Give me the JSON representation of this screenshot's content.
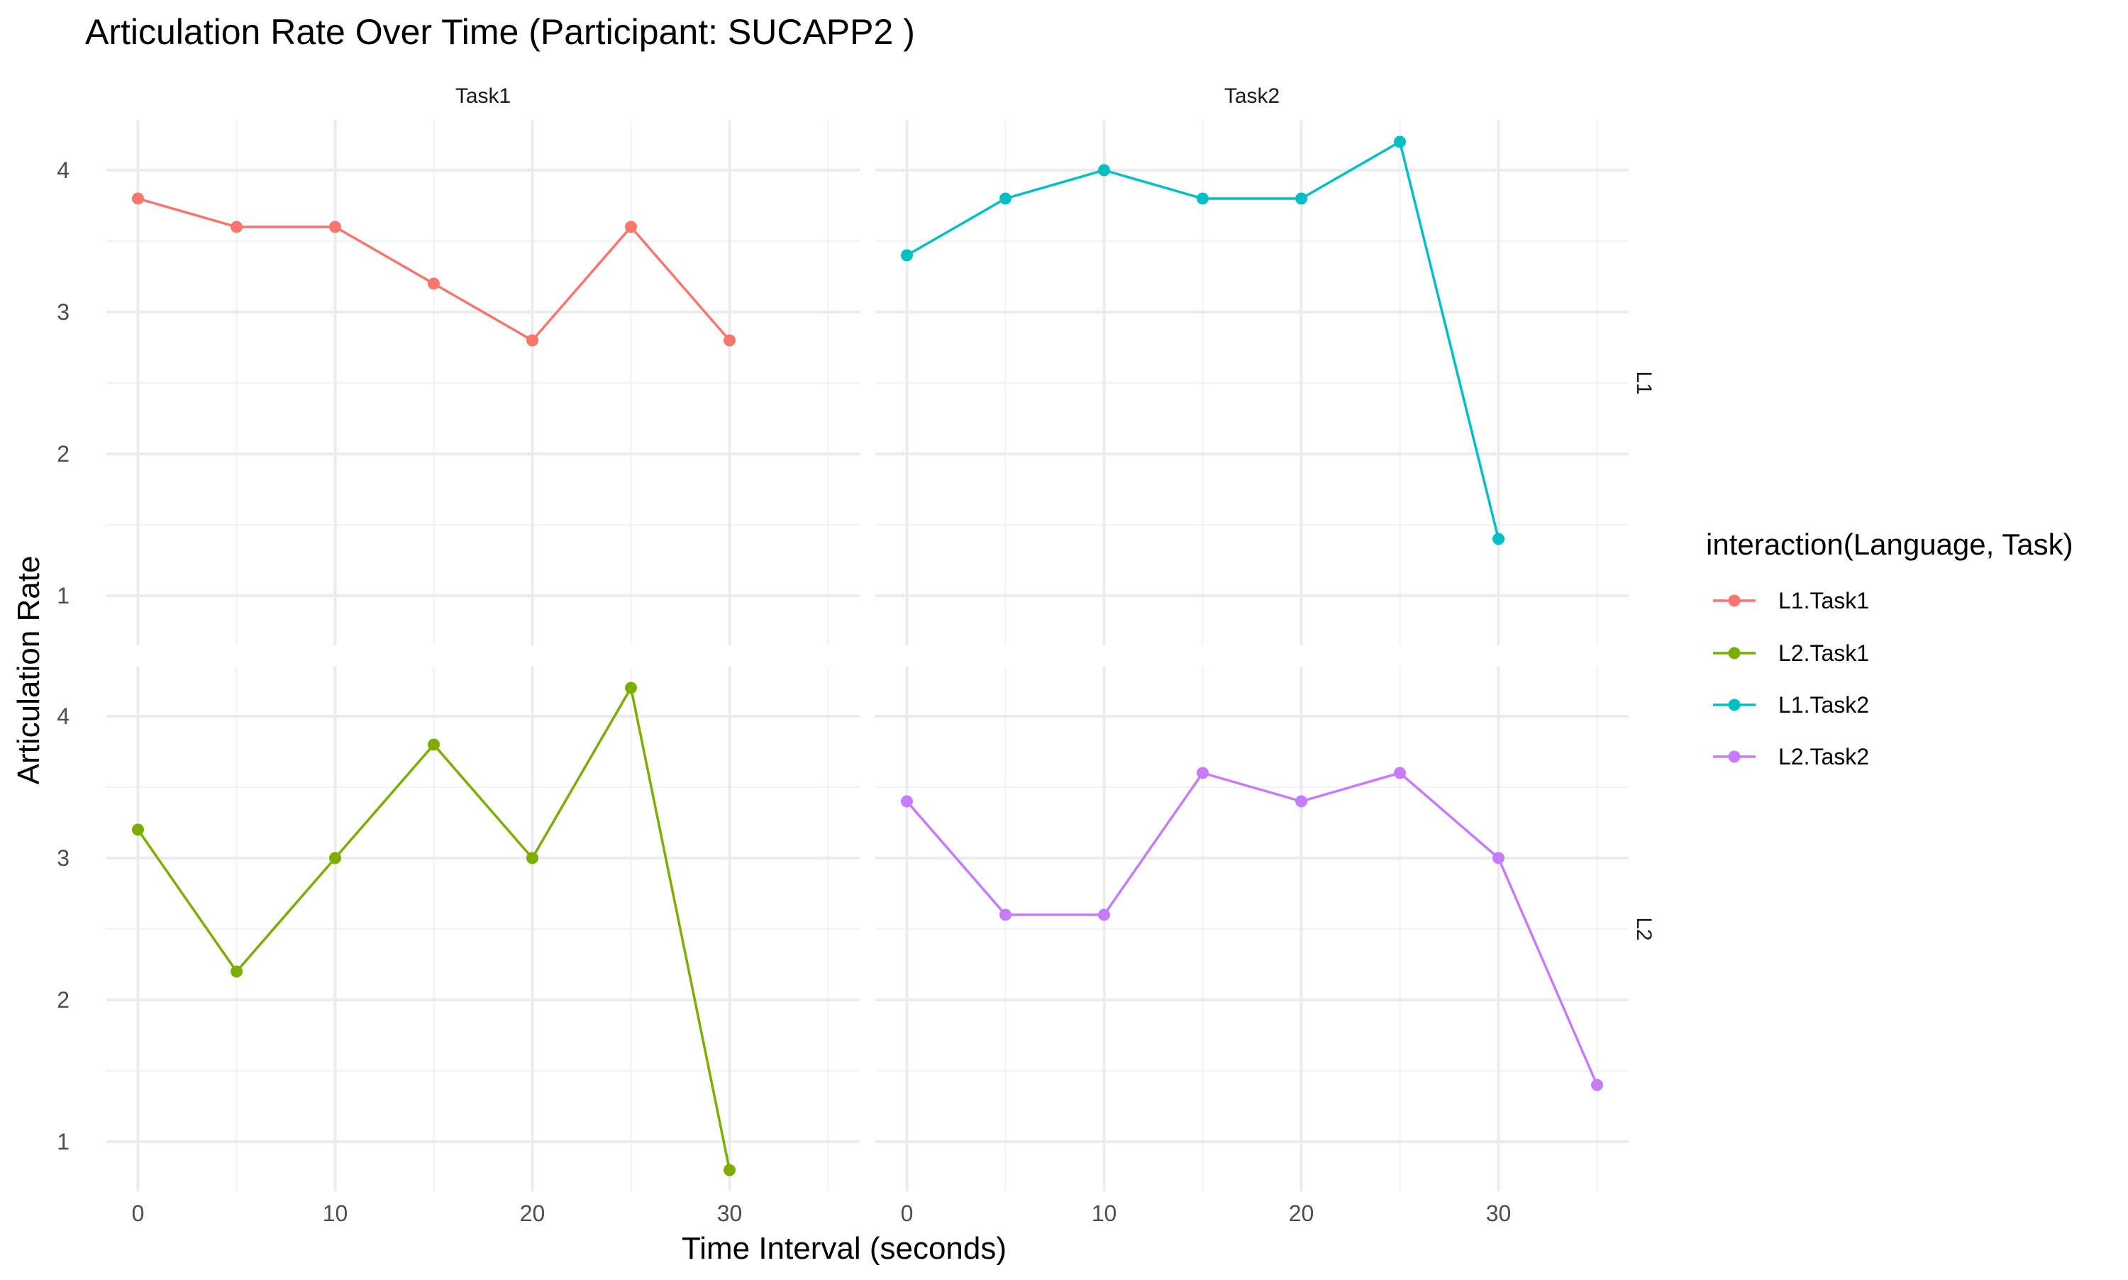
{
  "chart_data": {
    "type": "line",
    "title": "Articulation Rate Over Time (Participant: SUCAPP2 )",
    "xlabel": "Time Interval (seconds)",
    "ylabel": "Articulation Rate",
    "xlim": [
      0,
      35
    ],
    "ylim": [
      0.8,
      4.2
    ],
    "x_ticks": [
      0,
      10,
      20,
      30
    ],
    "y_ticks": [
      1,
      2,
      3,
      4
    ],
    "grid": true,
    "facet_columns": [
      "Task1",
      "Task2"
    ],
    "facet_rows": [
      "L1",
      "L2"
    ],
    "legend": {
      "title": "interaction(Language, Task)",
      "position": "right",
      "entries": [
        "L1.Task1",
        "L2.Task1",
        "L1.Task2",
        "L2.Task2"
      ]
    },
    "series": [
      {
        "name": "L1.Task1",
        "row": "L1",
        "col": "Task1",
        "color": "#F8766D",
        "x": [
          0,
          5,
          10,
          15,
          20,
          25,
          30
        ],
        "y": [
          3.8,
          3.6,
          3.6,
          3.2,
          2.8,
          3.6,
          2.8
        ]
      },
      {
        "name": "L2.Task1",
        "row": "L2",
        "col": "Task1",
        "color": "#7CAE00",
        "x": [
          0,
          5,
          10,
          15,
          20,
          25,
          30
        ],
        "y": [
          3.2,
          2.2,
          3.0,
          3.8,
          3.0,
          4.2,
          0.8
        ]
      },
      {
        "name": "L1.Task2",
        "row": "L1",
        "col": "Task2",
        "color": "#00BFC4",
        "x": [
          0,
          5,
          10,
          15,
          20,
          25,
          30
        ],
        "y": [
          3.4,
          3.8,
          4.0,
          3.8,
          3.8,
          4.2,
          1.4
        ]
      },
      {
        "name": "L2.Task2",
        "row": "L2",
        "col": "Task2",
        "color": "#C77CFF",
        "x": [
          0,
          5,
          10,
          15,
          20,
          25,
          30,
          35
        ],
        "y": [
          3.4,
          2.6,
          2.6,
          3.6,
          3.4,
          3.6,
          3.0,
          1.4
        ]
      }
    ]
  }
}
